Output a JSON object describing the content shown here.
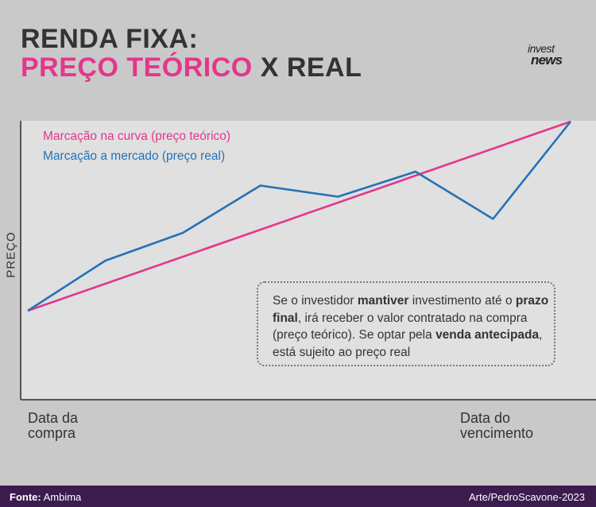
{
  "header": {
    "title_line1": "RENDA FIXA:",
    "title_line2_accent": "PREÇO TEÓRICO",
    "title_line2_rest": " X REAL"
  },
  "logo": {
    "line1": "invest",
    "line2": "news"
  },
  "colors": {
    "pink": "#e4368c",
    "blue": "#2472b8",
    "title": "#333333",
    "footer_bg": "#3c1b4f"
  },
  "chart_data": {
    "type": "line",
    "ylabel": "PREÇO",
    "xlabel": "",
    "x": [
      0,
      1,
      2,
      3,
      4,
      5,
      6,
      7
    ],
    "x_tick_labels": {
      "first": [
        "Data da",
        "compra"
      ],
      "last": [
        "Data do",
        "vencimento"
      ]
    },
    "ylim": [
      0,
      100
    ],
    "grid": false,
    "legend_position": "top-left",
    "series": [
      {
        "name": "Marcação na curva (preço teórico)",
        "color": "#e4368c",
        "values": [
          32,
          null,
          null,
          null,
          null,
          null,
          null,
          100
        ]
      },
      {
        "name": "Marcação a mercado (preço real)",
        "color": "#2472b8",
        "values": [
          32,
          50,
          60,
          77,
          73,
          82,
          65,
          100
        ]
      }
    ]
  },
  "note": {
    "parts": [
      {
        "text": "Se o investidor ",
        "bold": false
      },
      {
        "text": "mantiver",
        "bold": true
      },
      {
        "text": " investimento até o ",
        "bold": false
      },
      {
        "text": "prazo final",
        "bold": true
      },
      {
        "text": ", irá receber o valor contratado na compra (preço teórico). Se optar pela ",
        "bold": false
      },
      {
        "text": "venda antecipada",
        "bold": true
      },
      {
        "text": ", está sujeito ao preço real",
        "bold": false
      }
    ]
  },
  "footer": {
    "source_label": "Fonte:",
    "source_value": " Ambima",
    "credit": "Arte/PedroScavone-2023"
  }
}
